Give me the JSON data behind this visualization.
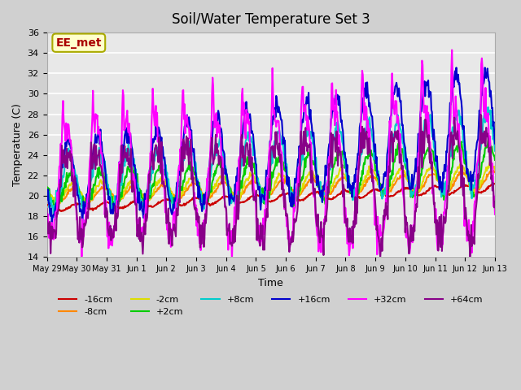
{
  "title": "Soil/Water Temperature Set 3",
  "xlabel": "Time",
  "ylabel": "Temperature (C)",
  "ylim": [
    14,
    36
  ],
  "yticks": [
    14,
    16,
    18,
    20,
    22,
    24,
    26,
    28,
    30,
    32,
    34,
    36
  ],
  "annotation": "EE_met",
  "series": {
    "-16cm": {
      "color": "#cc0000",
      "lw": 1.5,
      "zorder": 3
    },
    "-8cm": {
      "color": "#ff8800",
      "lw": 1.5,
      "zorder": 3
    },
    "-2cm": {
      "color": "#dddd00",
      "lw": 1.5,
      "zorder": 3
    },
    "+2cm": {
      "color": "#00cc00",
      "lw": 1.5,
      "zorder": 3
    },
    "+8cm": {
      "color": "#00cccc",
      "lw": 1.5,
      "zorder": 3
    },
    "+16cm": {
      "color": "#0000cc",
      "lw": 1.5,
      "zorder": 3
    },
    "+32cm": {
      "color": "#ff00ff",
      "lw": 1.5,
      "zorder": 3
    },
    "+64cm": {
      "color": "#880088",
      "lw": 1.5,
      "zorder": 3
    }
  },
  "x_tick_labels": [
    "May 29",
    "May 30",
    "May 31",
    "Jun 1",
    "Jun 2",
    "Jun 3",
    "Jun 4",
    "Jun 5",
    "Jun 6",
    "Jun 7",
    "Jun 8",
    "Jun 9",
    "Jun 10",
    "Jun 11",
    "Jun 12",
    "Jun 13"
  ],
  "num_days": 15
}
